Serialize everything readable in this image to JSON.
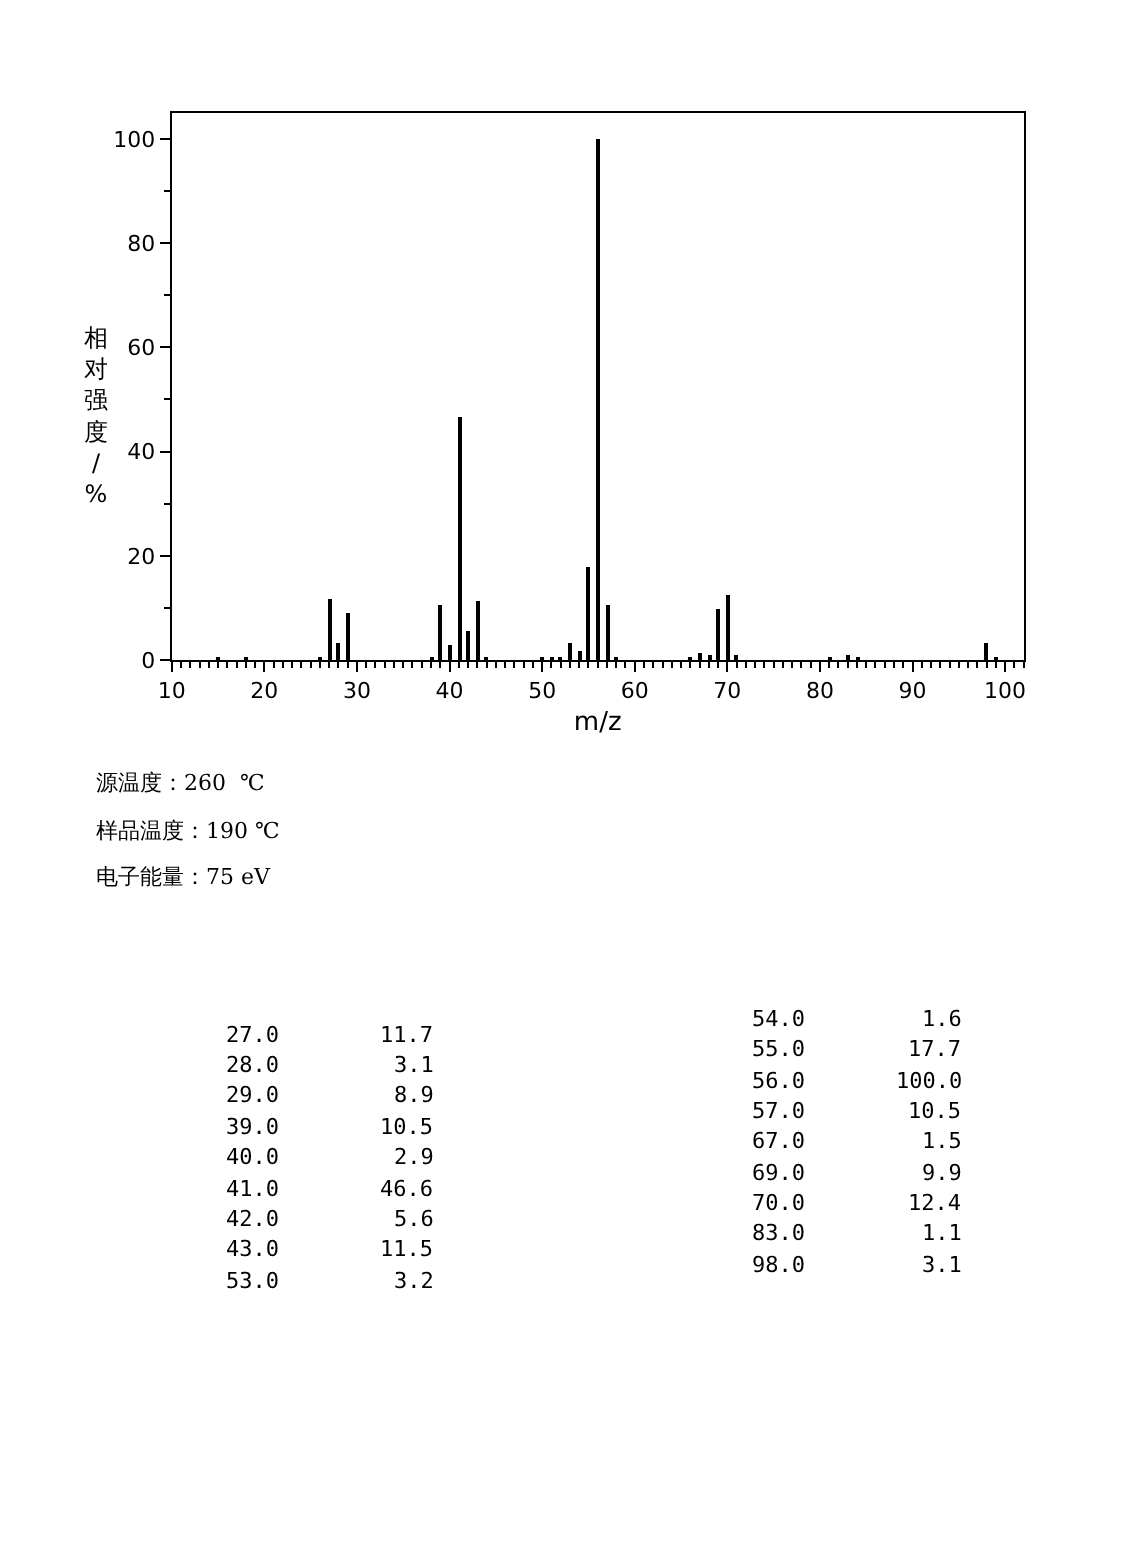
{
  "chart_data": {
    "type": "bar",
    "xlabel": "m/z",
    "ylabel": "相对强度/%",
    "x": [
      15,
      18,
      26,
      27,
      28,
      29,
      38,
      39,
      40,
      41,
      42,
      43,
      44,
      50,
      51,
      52,
      53,
      54,
      55,
      56,
      57,
      58,
      66,
      67,
      68,
      69,
      70,
      71,
      81,
      83,
      84,
      98,
      99
    ],
    "values": [
      0.5,
      0.5,
      0.6,
      11.7,
      3.1,
      8.9,
      0.6,
      10.5,
      2.9,
      46.6,
      5.6,
      11.5,
      0.5,
      0.5,
      0.6,
      0.6,
      3.2,
      1.6,
      17.7,
      100.0,
      10.5,
      0.5,
      0.5,
      1.5,
      0.8,
      9.9,
      12.4,
      1.0,
      0.5,
      1.1,
      0.5,
      3.1,
      0.5
    ],
    "color": "#000000",
    "xlim": [
      10,
      102
    ],
    "xticks": [
      10,
      20,
      30,
      40,
      50,
      60,
      70,
      80,
      90,
      100
    ],
    "ylim": [
      0,
      105
    ],
    "yticks": [
      0,
      20,
      40,
      60,
      80,
      100
    ],
    "annotations": [
      "源温度：260  ℃",
      "样品温度：190 ℃",
      "电子能量：75 eV",
      "27.0",
      "11.7",
      "28.0",
      "3.1",
      "29.0",
      "8.9",
      "39.0",
      "10.5",
      "40.0",
      "2.9",
      "41.0",
      "46.6",
      "42.0",
      "5.6",
      "43.0",
      "11.5",
      "53.0",
      "3.2",
      "54.0",
      "1.6",
      "55.0",
      "17.7",
      "56.0",
      "100.0",
      "57.0",
      "10.5",
      "67.0",
      "1.5",
      "69.0",
      "9.9",
      "70.0",
      "12.4",
      "83.0",
      "1.1",
      "98.0",
      "3.1"
    ]
  }
}
